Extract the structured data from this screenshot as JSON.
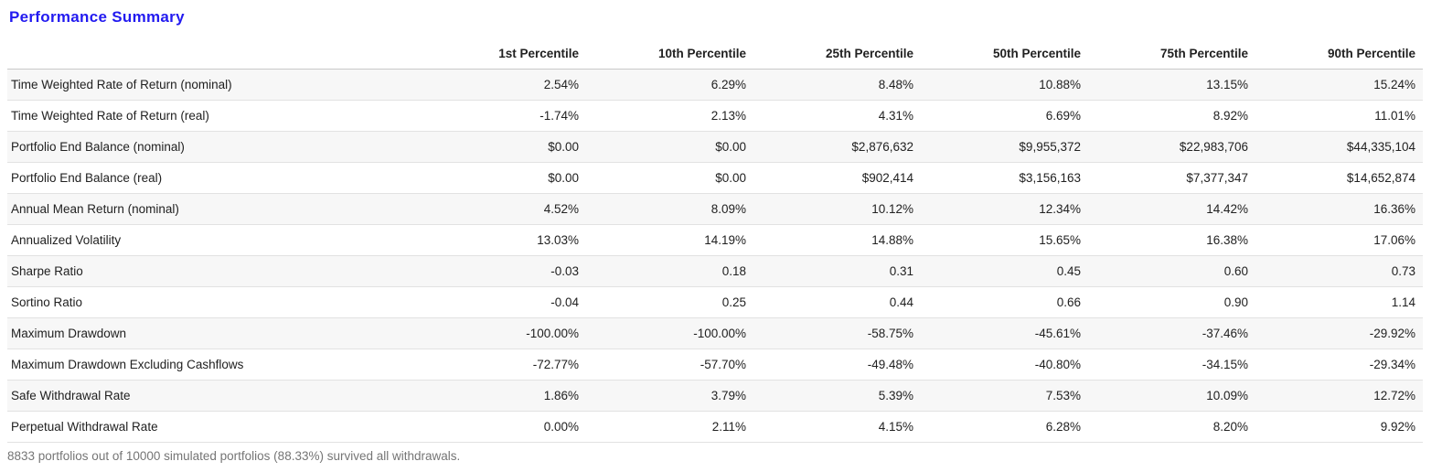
{
  "page": {
    "title": "Performance Summary",
    "title_color": "#221af0",
    "footer_note": "8833 portfolios out of 10000 simulated portfolios (88.33%) survived all withdrawals."
  },
  "table": {
    "columns": [
      "1st Percentile",
      "10th Percentile",
      "25th Percentile",
      "50th Percentile",
      "75th Percentile",
      "90th Percentile"
    ],
    "rows": [
      {
        "label": "Time Weighted Rate of Return (nominal)",
        "values": [
          "2.54%",
          "6.29%",
          "8.48%",
          "10.88%",
          "13.15%",
          "15.24%"
        ]
      },
      {
        "label": "Time Weighted Rate of Return (real)",
        "values": [
          "-1.74%",
          "2.13%",
          "4.31%",
          "6.69%",
          "8.92%",
          "11.01%"
        ]
      },
      {
        "label": "Portfolio End Balance (nominal)",
        "values": [
          "$0.00",
          "$0.00",
          "$2,876,632",
          "$9,955,372",
          "$22,983,706",
          "$44,335,104"
        ]
      },
      {
        "label": "Portfolio End Balance (real)",
        "values": [
          "$0.00",
          "$0.00",
          "$902,414",
          "$3,156,163",
          "$7,377,347",
          "$14,652,874"
        ]
      },
      {
        "label": "Annual Mean Return (nominal)",
        "values": [
          "4.52%",
          "8.09%",
          "10.12%",
          "12.34%",
          "14.42%",
          "16.36%"
        ]
      },
      {
        "label": "Annualized Volatility",
        "values": [
          "13.03%",
          "14.19%",
          "14.88%",
          "15.65%",
          "16.38%",
          "17.06%"
        ]
      },
      {
        "label": "Sharpe Ratio",
        "values": [
          "-0.03",
          "0.18",
          "0.31",
          "0.45",
          "0.60",
          "0.73"
        ]
      },
      {
        "label": "Sortino Ratio",
        "values": [
          "-0.04",
          "0.25",
          "0.44",
          "0.66",
          "0.90",
          "1.14"
        ]
      },
      {
        "label": "Maximum Drawdown",
        "values": [
          "-100.00%",
          "-100.00%",
          "-58.75%",
          "-45.61%",
          "-37.46%",
          "-29.92%"
        ]
      },
      {
        "label": "Maximum Drawdown Excluding Cashflows",
        "values": [
          "-72.77%",
          "-57.70%",
          "-49.48%",
          "-40.80%",
          "-34.15%",
          "-29.34%"
        ]
      },
      {
        "label": "Safe Withdrawal Rate",
        "values": [
          "1.86%",
          "3.79%",
          "5.39%",
          "7.53%",
          "10.09%",
          "12.72%"
        ]
      },
      {
        "label": "Perpetual Withdrawal Rate",
        "values": [
          "0.00%",
          "2.11%",
          "4.15%",
          "6.28%",
          "8.20%",
          "9.92%"
        ]
      }
    ]
  }
}
